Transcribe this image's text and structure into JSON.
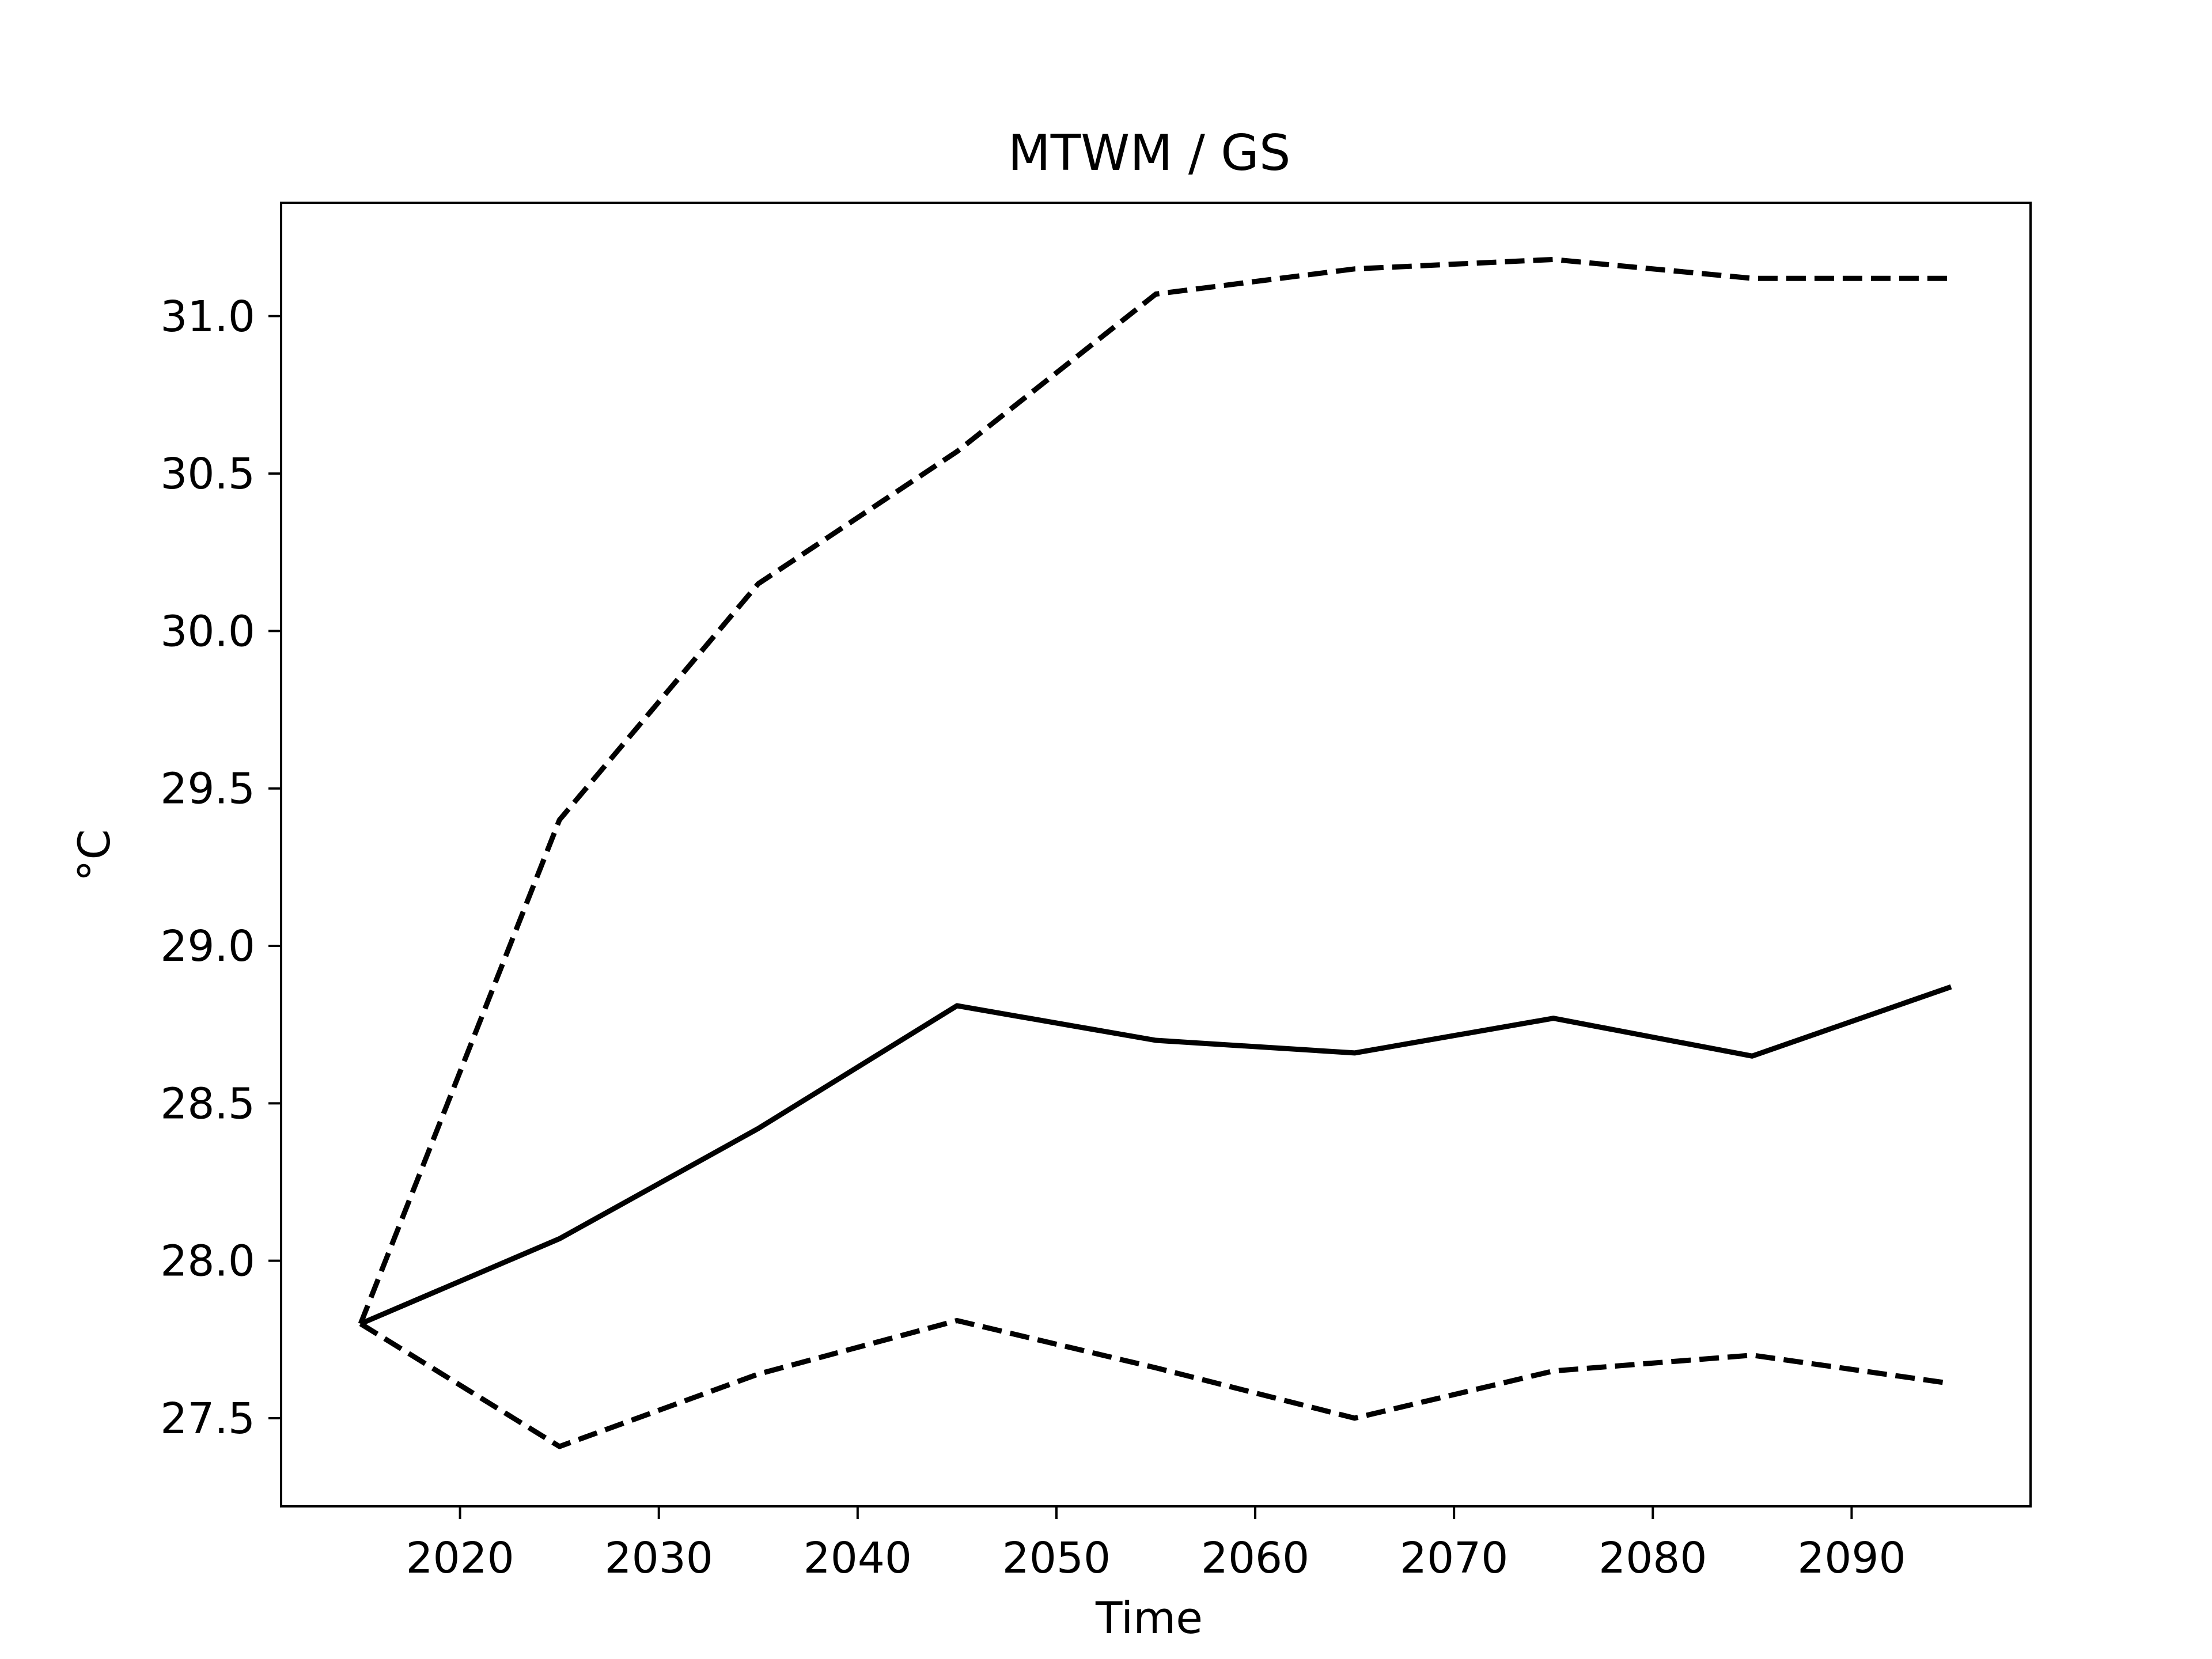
{
  "chart_data": {
    "type": "line",
    "title": "MTWM / GS",
    "xlabel": "Time",
    "ylabel": "°C",
    "xlim": [
      2011,
      2099
    ],
    "ylim": [
      27.22,
      31.36
    ],
    "xticks": [
      2020,
      2030,
      2040,
      2050,
      2060,
      2070,
      2080,
      2090
    ],
    "yticks": [
      27.5,
      28.0,
      28.5,
      29.0,
      29.5,
      30.0,
      30.5,
      31.0
    ],
    "ytick_labels": [
      "27.5",
      "28.0",
      "28.5",
      "29.0",
      "29.5",
      "30.0",
      "30.5",
      "31.0"
    ],
    "grid": false,
    "legend": "none",
    "x": [
      2015,
      2025,
      2035,
      2045,
      2055,
      2065,
      2075,
      2085,
      2095
    ],
    "series": [
      {
        "style": "solid",
        "color": "#000000",
        "values": [
          27.8,
          28.07,
          28.42,
          28.81,
          28.7,
          28.66,
          28.77,
          28.65,
          28.87
        ]
      },
      {
        "style": "dashed",
        "color": "#000000",
        "values": [
          27.8,
          29.4,
          30.15,
          30.57,
          31.07,
          31.15,
          31.18,
          31.12,
          31.12
        ]
      },
      {
        "style": "dashed",
        "color": "#000000",
        "values": [
          27.8,
          27.41,
          27.64,
          27.81,
          27.66,
          27.5,
          27.65,
          27.7,
          27.61
        ]
      }
    ]
  }
}
